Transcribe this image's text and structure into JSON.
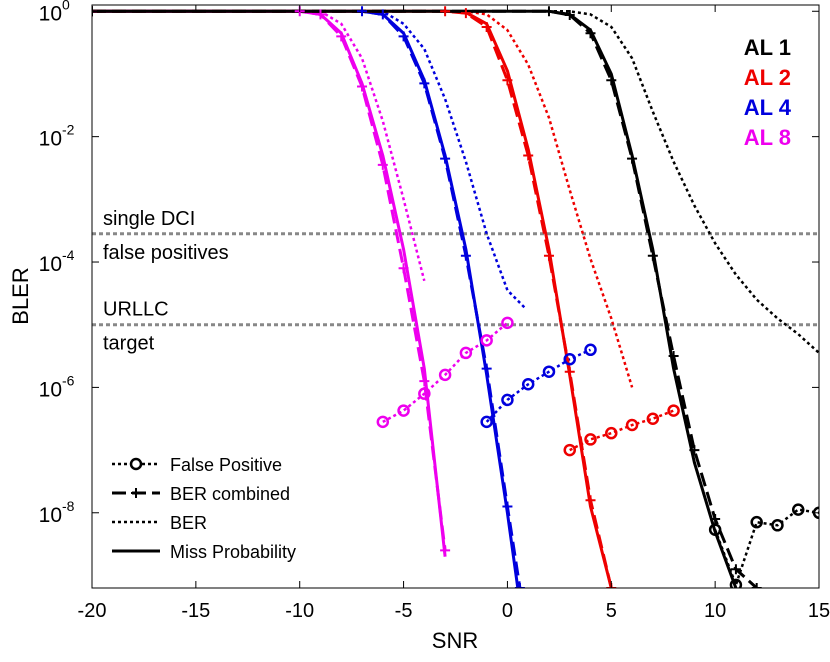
{
  "chart_data": {
    "type": "line",
    "title": "",
    "xlabel": "SNR",
    "ylabel": "BLER",
    "xlim": [
      -20,
      15
    ],
    "ylim_log10": [
      -9.2,
      0.1
    ],
    "yscale": "log",
    "x_ticks": [
      -20,
      -15,
      -10,
      -5,
      0,
      5,
      10,
      15
    ],
    "x_tick_labels": [
      "-20",
      "-15",
      "-10",
      "-5",
      "0",
      "5",
      "10",
      "15"
    ],
    "y_ticks": [
      {
        "exp": 0,
        "base": "10",
        "sup": "0"
      },
      {
        "exp": -2,
        "base": "10",
        "sup": "-2"
      },
      {
        "exp": -4,
        "base": "10",
        "sup": "-4"
      },
      {
        "exp": -6,
        "base": "10",
        "sup": "-6"
      },
      {
        "exp": -8,
        "base": "10",
        "sup": "-8"
      }
    ],
    "reference_lines": [
      {
        "name": "single DCI false positives",
        "y_log10": -3.55,
        "label_top": "single DCI",
        "label_bottom": "false positives"
      },
      {
        "name": "URLLC target",
        "y_log10": -5.0,
        "label_top": "URLLC",
        "label_bottom": "target"
      }
    ],
    "series_legend": [
      {
        "label": "AL 1",
        "color": "#000000"
      },
      {
        "label": "AL 2",
        "color": "#ee0000"
      },
      {
        "label": "AL 4",
        "color": "#0000dd"
      },
      {
        "label": "AL 8",
        "color": "#ee00ee"
      }
    ],
    "style_legend": [
      {
        "label": "False Positive",
        "style": "false-positive"
      },
      {
        "label": "BER combined",
        "style": "ber-combined"
      },
      {
        "label": "BER",
        "style": "ber"
      },
      {
        "label": "Miss Probability",
        "style": "miss"
      }
    ],
    "series": [
      {
        "al": "AL 8",
        "color": "#ee00ee",
        "kind": "miss",
        "points": [
          [
            -20,
            0
          ],
          [
            -10,
            0
          ],
          [
            -9,
            -0.05
          ],
          [
            -8,
            -0.35
          ],
          [
            -7,
            -1.15
          ],
          [
            -6,
            -2.3
          ],
          [
            -5,
            -3.8
          ],
          [
            -4,
            -5.7
          ],
          [
            -3,
            -8.7
          ]
        ]
      },
      {
        "al": "AL 8",
        "color": "#ee00ee",
        "kind": "ber-combined",
        "points": [
          [
            -20,
            0
          ],
          [
            -10,
            0
          ],
          [
            -9,
            -0.05
          ],
          [
            -8,
            -0.4
          ],
          [
            -7,
            -1.2
          ],
          [
            -6,
            -2.45
          ],
          [
            -5,
            -4.1
          ],
          [
            -4,
            -5.9
          ],
          [
            -3,
            -8.6
          ]
        ]
      },
      {
        "al": "AL 8",
        "color": "#ee00ee",
        "kind": "ber",
        "points": [
          [
            -20,
            0
          ],
          [
            -9,
            0
          ],
          [
            -8,
            -0.2
          ],
          [
            -7,
            -0.75
          ],
          [
            -6,
            -1.75
          ],
          [
            -5,
            -3.0
          ],
          [
            -4,
            -4.3
          ]
        ]
      },
      {
        "al": "AL 8",
        "color": "#ee00ee",
        "kind": "false-positive",
        "points": [
          [
            -6,
            -6.55
          ],
          [
            -5,
            -6.37
          ],
          [
            -4,
            -6.1
          ],
          [
            -3,
            -5.8
          ],
          [
            -2,
            -5.45
          ],
          [
            -1,
            -5.25
          ],
          [
            0,
            -4.97
          ]
        ]
      },
      {
        "al": "AL 4",
        "color": "#0000dd",
        "kind": "miss",
        "points": [
          [
            -20,
            0
          ],
          [
            -7,
            0
          ],
          [
            -6,
            -0.05
          ],
          [
            -5,
            -0.35
          ],
          [
            -4,
            -1.1
          ],
          [
            -3,
            -2.3
          ],
          [
            -2,
            -3.8
          ],
          [
            -1,
            -5.8
          ],
          [
            0,
            -8.0
          ],
          [
            0.5,
            -9.2
          ]
        ]
      },
      {
        "al": "AL 4",
        "color": "#0000dd",
        "kind": "ber-combined",
        "points": [
          [
            -20,
            0
          ],
          [
            -7,
            0
          ],
          [
            -6,
            -0.05
          ],
          [
            -5,
            -0.4
          ],
          [
            -4,
            -1.15
          ],
          [
            -3,
            -2.35
          ],
          [
            -2,
            -3.9
          ],
          [
            -1,
            -5.7
          ],
          [
            0,
            -7.9
          ],
          [
            0.6,
            -9.2
          ]
        ]
      },
      {
        "al": "AL 4",
        "color": "#0000dd",
        "kind": "ber",
        "points": [
          [
            -20,
            0
          ],
          [
            -6,
            0
          ],
          [
            -5,
            -0.2
          ],
          [
            -4,
            -0.6
          ],
          [
            -3,
            -1.4
          ],
          [
            -2,
            -2.4
          ],
          [
            -1,
            -3.55
          ],
          [
            0,
            -4.45
          ],
          [
            0.9,
            -4.75
          ]
        ]
      },
      {
        "al": "AL 4",
        "color": "#0000dd",
        "kind": "false-positive",
        "points": [
          [
            -1,
            -6.55
          ],
          [
            0,
            -6.2
          ],
          [
            1,
            -5.95
          ],
          [
            2,
            -5.75
          ],
          [
            3,
            -5.55
          ],
          [
            4,
            -5.4
          ]
        ]
      },
      {
        "al": "AL 2",
        "color": "#ee0000",
        "kind": "miss",
        "points": [
          [
            -20,
            0
          ],
          [
            -3,
            0
          ],
          [
            -2,
            -0.02
          ],
          [
            -1,
            -0.2
          ],
          [
            0,
            -0.95
          ],
          [
            1,
            -2.2
          ],
          [
            2,
            -3.8
          ],
          [
            3,
            -5.8
          ],
          [
            4,
            -7.9
          ],
          [
            5,
            -9.2
          ]
        ]
      },
      {
        "al": "AL 2",
        "color": "#ee0000",
        "kind": "ber-combined",
        "points": [
          [
            -20,
            0
          ],
          [
            -3,
            0
          ],
          [
            -2,
            -0.03
          ],
          [
            -1,
            -0.25
          ],
          [
            0,
            -1.1
          ],
          [
            1,
            -2.3
          ],
          [
            2,
            -3.9
          ],
          [
            3,
            -5.75
          ],
          [
            4,
            -7.8
          ],
          [
            5,
            -9.2
          ]
        ]
      },
      {
        "al": "AL 2",
        "color": "#ee0000",
        "kind": "ber",
        "points": [
          [
            -20,
            0
          ],
          [
            -2,
            0
          ],
          [
            -1,
            -0.05
          ],
          [
            0,
            -0.3
          ],
          [
            1,
            -0.85
          ],
          [
            2,
            -1.7
          ],
          [
            3,
            -2.85
          ],
          [
            4,
            -3.95
          ],
          [
            5,
            -4.9
          ],
          [
            6,
            -6.0
          ]
        ]
      },
      {
        "al": "AL 2",
        "color": "#ee0000",
        "kind": "false-positive",
        "points": [
          [
            3,
            -7.0
          ],
          [
            4,
            -6.83
          ],
          [
            5,
            -6.73
          ],
          [
            6,
            -6.6
          ],
          [
            7,
            -6.5
          ],
          [
            8,
            -6.37
          ]
        ]
      },
      {
        "al": "AL 1",
        "color": "#000000",
        "kind": "miss",
        "points": [
          [
            -20,
            0
          ],
          [
            2,
            0
          ],
          [
            3,
            -0.05
          ],
          [
            4,
            -0.3
          ],
          [
            5,
            -1.0
          ],
          [
            6,
            -2.3
          ],
          [
            7,
            -3.8
          ],
          [
            8,
            -5.7
          ],
          [
            9,
            -7.2
          ],
          [
            10,
            -8.3
          ],
          [
            11,
            -9.2
          ]
        ]
      },
      {
        "al": "AL 1",
        "color": "#000000",
        "kind": "ber-combined",
        "points": [
          [
            -20,
            0
          ],
          [
            2,
            0
          ],
          [
            3,
            -0.06
          ],
          [
            4,
            -0.35
          ],
          [
            5,
            -1.1
          ],
          [
            6,
            -2.35
          ],
          [
            7,
            -3.9
          ],
          [
            8,
            -5.5
          ],
          [
            9,
            -7.0
          ],
          [
            10,
            -8.1
          ],
          [
            11,
            -8.9
          ],
          [
            12,
            -9.2
          ]
        ]
      },
      {
        "al": "AL 1",
        "color": "#000000",
        "kind": "ber",
        "points": [
          [
            -20,
            0
          ],
          [
            3,
            0
          ],
          [
            4,
            -0.05
          ],
          [
            5,
            -0.25
          ],
          [
            6,
            -0.75
          ],
          [
            7,
            -1.6
          ],
          [
            8,
            -2.4
          ],
          [
            9,
            -3.1
          ],
          [
            10,
            -3.7
          ],
          [
            11,
            -4.2
          ],
          [
            12,
            -4.6
          ],
          [
            13,
            -4.9
          ],
          [
            14,
            -5.15
          ],
          [
            15,
            -5.45
          ]
        ]
      },
      {
        "al": "AL 1",
        "color": "#000000",
        "kind": "false-positive",
        "points": [
          [
            10,
            -8.27
          ],
          [
            11,
            -9.15
          ],
          [
            12,
            -8.15
          ],
          [
            13,
            -8.2
          ],
          [
            14,
            -7.95
          ],
          [
            15,
            -8.0
          ]
        ]
      }
    ]
  }
}
